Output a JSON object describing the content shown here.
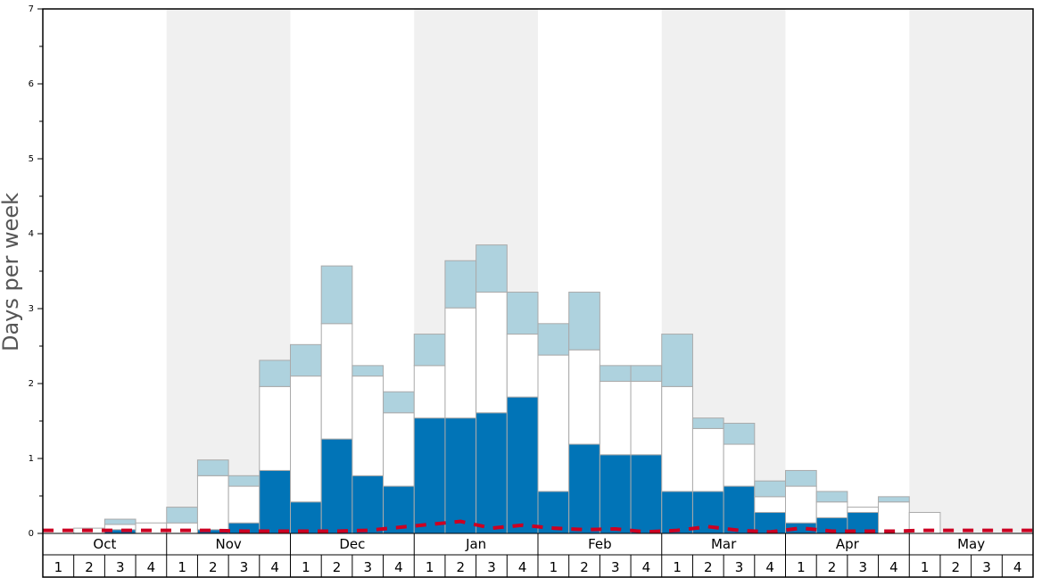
{
  "chart_data": {
    "type": "bar",
    "stacked": true,
    "title": "",
    "ylabel": "Days per week",
    "xlabel": "",
    "ylim": [
      0,
      7
    ],
    "yticks": [
      "0",
      "1",
      "2",
      "3",
      "4",
      "5",
      "6",
      "7"
    ],
    "months": [
      "Oct",
      "Nov",
      "Dec",
      "Jan",
      "Feb",
      "Mar",
      "Apr",
      "May"
    ],
    "week_labels": [
      "1",
      "2",
      "3",
      "4"
    ],
    "colors": {
      "band_shade": "#f0f0f0",
      "segment_dark": "#0174b7",
      "segment_white": "#ffffff",
      "segment_light": "#aed2de",
      "bar_border": "#aaaaaa",
      "dashed_line": "#cc0022",
      "frame": "#000000"
    },
    "series": [
      {
        "values": [
          0,
          0,
          0.05,
          0,
          0,
          0.05,
          0.14,
          0.84,
          0.42,
          1.26,
          0.77,
          0.63,
          1.54,
          1.54,
          1.61,
          1.82,
          0.56,
          1.19,
          1.05,
          1.05,
          0.56,
          0.56,
          0.63,
          0.28,
          0.14,
          0.21,
          0.28,
          0,
          0,
          0,
          0,
          0
        ]
      },
      {
        "values": [
          0,
          0.07,
          0.07,
          0.14,
          0.14,
          0.72,
          0.49,
          1.12,
          1.68,
          1.54,
          1.33,
          0.98,
          0.7,
          1.47,
          1.61,
          0.84,
          1.82,
          1.26,
          0.98,
          0.98,
          1.4,
          0.84,
          0.56,
          0.21,
          0.49,
          0.21,
          0.07,
          0.42,
          0.28,
          0,
          0,
          0
        ]
      },
      {
        "values": [
          0,
          0,
          0.07,
          0,
          0.21,
          0.21,
          0.14,
          0.35,
          0.42,
          0.77,
          0.14,
          0.28,
          0.42,
          0.63,
          0.63,
          0.56,
          0.42,
          0.77,
          0.21,
          0.21,
          0.7,
          0.14,
          0.28,
          0.21,
          0.21,
          0.14,
          0,
          0.07,
          0,
          0,
          0,
          0
        ]
      },
      {
        "type": "line",
        "style": "dashed",
        "values": [
          0.04,
          0.04,
          0.04,
          0.04,
          0.04,
          0.04,
          0.03,
          0.03,
          0.03,
          0.03,
          0.04,
          0.08,
          0.12,
          0.16,
          0.07,
          0.11,
          0.07,
          0.05,
          0.06,
          0.02,
          0.04,
          0.09,
          0.04,
          0.02,
          0.07,
          0.03,
          0.03,
          0.03,
          0.04,
          0.04,
          0.04,
          0.04
        ]
      }
    ]
  }
}
